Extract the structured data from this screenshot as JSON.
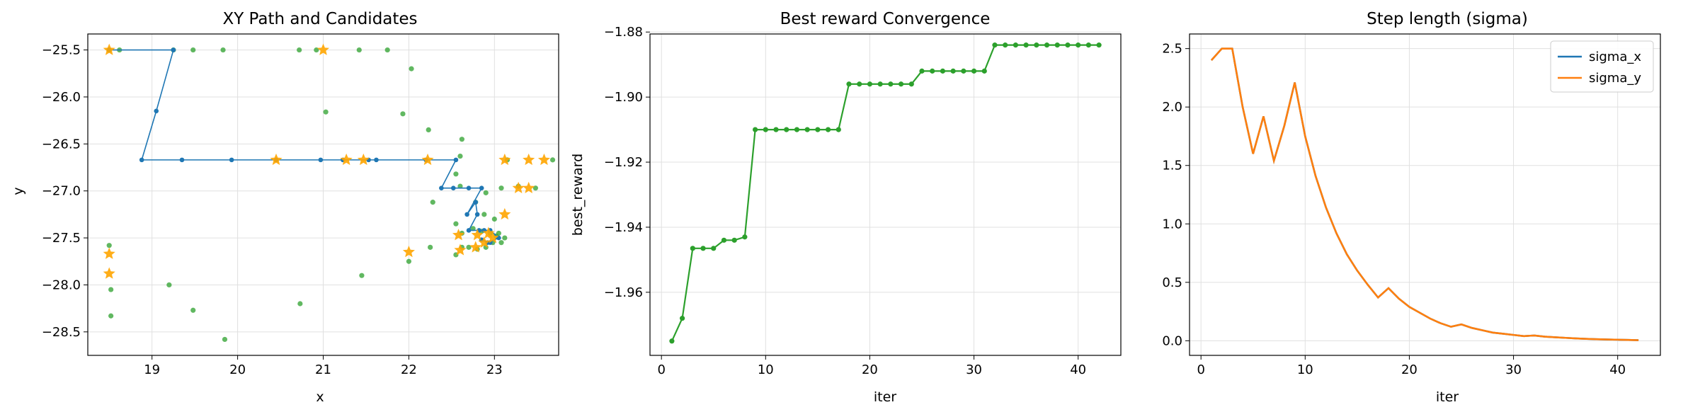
{
  "chart_data": [
    {
      "type": "scatter",
      "title": "XY Path and Candidates",
      "xlabel": "x",
      "ylabel": "y",
      "xlim": [
        18.25,
        23.75
      ],
      "ylim": [
        -28.75,
        -25.33
      ],
      "xticks": [
        19,
        20,
        21,
        22,
        23
      ],
      "yticks": [
        -25.5,
        -26.0,
        -26.5,
        -27.0,
        -27.5,
        -28.0,
        -28.5
      ],
      "grid": true,
      "colors": {
        "path": "#1f77b4",
        "candidates": "#2ca02c",
        "best": "#ffa500"
      },
      "series": [
        {
          "role": "path",
          "points": [
            [
              18.5,
              -25.5
            ],
            [
              19.25,
              -25.5
            ],
            [
              19.05,
              -26.15
            ],
            [
              18.88,
              -26.67
            ],
            [
              19.35,
              -26.67
            ],
            [
              19.93,
              -26.67
            ],
            [
              20.45,
              -26.67
            ],
            [
              20.97,
              -26.67
            ],
            [
              21.23,
              -26.67
            ],
            [
              21.53,
              -26.67
            ],
            [
              21.62,
              -26.67
            ],
            [
              22.2,
              -26.67
            ],
            [
              22.55,
              -26.67
            ],
            [
              22.38,
              -26.97
            ],
            [
              22.52,
              -26.97
            ],
            [
              22.7,
              -26.97
            ],
            [
              22.85,
              -26.97
            ],
            [
              22.68,
              -27.25
            ],
            [
              22.78,
              -27.12
            ],
            [
              22.8,
              -27.25
            ],
            [
              22.7,
              -27.42
            ],
            [
              22.82,
              -27.42
            ],
            [
              22.88,
              -27.42
            ],
            [
              22.95,
              -27.42
            ],
            [
              23.05,
              -27.5
            ],
            [
              22.92,
              -27.55
            ],
            [
              22.85,
              -27.52
            ],
            [
              22.95,
              -27.55
            ]
          ]
        },
        {
          "role": "candidates",
          "points": [
            [
              18.5,
              -25.5
            ],
            [
              18.62,
              -25.5
            ],
            [
              19.25,
              -25.5
            ],
            [
              19.48,
              -25.5
            ],
            [
              19.83,
              -25.5
            ],
            [
              20.72,
              -25.5
            ],
            [
              20.92,
              -25.5
            ],
            [
              21.42,
              -25.5
            ],
            [
              21.75,
              -25.5
            ],
            [
              22.03,
              -25.7
            ],
            [
              21.03,
              -26.16
            ],
            [
              21.93,
              -26.18
            ],
            [
              22.23,
              -26.35
            ],
            [
              22.62,
              -26.45
            ],
            [
              22.6,
              -26.63
            ],
            [
              23.15,
              -26.67
            ],
            [
              23.68,
              -26.67
            ],
            [
              22.55,
              -26.82
            ],
            [
              22.6,
              -26.95
            ],
            [
              22.9,
              -27.02
            ],
            [
              23.08,
              -26.97
            ],
            [
              23.28,
              -26.95
            ],
            [
              23.48,
              -26.97
            ],
            [
              22.28,
              -27.12
            ],
            [
              22.78,
              -27.12
            ],
            [
              22.88,
              -27.25
            ],
            [
              23.0,
              -27.3
            ],
            [
              22.55,
              -27.35
            ],
            [
              22.75,
              -27.4
            ],
            [
              22.85,
              -27.43
            ],
            [
              22.95,
              -27.45
            ],
            [
              23.05,
              -27.45
            ],
            [
              23.12,
              -27.5
            ],
            [
              23.08,
              -27.55
            ],
            [
              22.98,
              -27.55
            ],
            [
              22.9,
              -27.6
            ],
            [
              22.8,
              -27.62
            ],
            [
              22.7,
              -27.6
            ],
            [
              22.62,
              -27.6
            ],
            [
              22.55,
              -27.68
            ],
            [
              22.62,
              -27.45
            ],
            [
              23.02,
              -27.48
            ],
            [
              22.25,
              -27.6
            ],
            [
              22.0,
              -27.75
            ],
            [
              21.45,
              -27.9
            ],
            [
              20.73,
              -28.2
            ],
            [
              19.2,
              -28.0
            ],
            [
              19.48,
              -28.27
            ],
            [
              19.85,
              -28.58
            ],
            [
              18.5,
              -27.58
            ],
            [
              18.52,
              -28.05
            ],
            [
              18.52,
              -28.33
            ]
          ]
        },
        {
          "role": "best",
          "points": [
            [
              18.5,
              -25.5
            ],
            [
              21.0,
              -25.5
            ],
            [
              20.45,
              -26.67
            ],
            [
              21.27,
              -26.67
            ],
            [
              21.47,
              -26.67
            ],
            [
              22.22,
              -26.67
            ],
            [
              23.12,
              -26.67
            ],
            [
              23.4,
              -26.67
            ],
            [
              23.58,
              -26.67
            ],
            [
              23.28,
              -26.97
            ],
            [
              23.4,
              -26.97
            ],
            [
              23.12,
              -27.25
            ],
            [
              22.58,
              -27.47
            ],
            [
              22.8,
              -27.47
            ],
            [
              22.93,
              -27.45
            ],
            [
              22.98,
              -27.5
            ],
            [
              22.88,
              -27.55
            ],
            [
              22.78,
              -27.6
            ],
            [
              22.6,
              -27.63
            ],
            [
              22.0,
              -27.65
            ],
            [
              18.5,
              -27.67
            ],
            [
              18.5,
              -27.88
            ]
          ]
        }
      ]
    },
    {
      "type": "line",
      "title": "Best reward Convergence",
      "xlabel": "iter",
      "ylabel": "best_reward",
      "xlim": [
        -1.1,
        44.1
      ],
      "ylim": [
        -1.9794,
        -1.8806
      ],
      "xticks": [
        0,
        10,
        20,
        30,
        40
      ],
      "yticks": [
        -1.88,
        -1.9,
        -1.92,
        -1.94,
        -1.96
      ],
      "grid": true,
      "colors": {
        "line": "#2ca02c"
      },
      "x": [
        1,
        2,
        3,
        4,
        5,
        6,
        7,
        8,
        9,
        10,
        11,
        12,
        13,
        14,
        15,
        16,
        17,
        18,
        19,
        20,
        21,
        22,
        23,
        24,
        25,
        26,
        27,
        28,
        29,
        30,
        31,
        32,
        33,
        34,
        35,
        36,
        37,
        38,
        39,
        40,
        41,
        42
      ],
      "values": [
        -1.975,
        -1.968,
        -1.9465,
        -1.9465,
        -1.9465,
        -1.944,
        -1.944,
        -1.943,
        -1.91,
        -1.91,
        -1.91,
        -1.91,
        -1.91,
        -1.91,
        -1.91,
        -1.91,
        -1.91,
        -1.896,
        -1.896,
        -1.896,
        -1.896,
        -1.896,
        -1.896,
        -1.896,
        -1.892,
        -1.892,
        -1.892,
        -1.892,
        -1.892,
        -1.892,
        -1.892,
        -1.884,
        -1.884,
        -1.884,
        -1.884,
        -1.884,
        -1.884,
        -1.884,
        -1.884,
        -1.884,
        -1.884,
        -1.884
      ]
    },
    {
      "type": "line",
      "title": "Step length (sigma)",
      "xlabel": "iter",
      "ylabel": "",
      "xlim": [
        -1.1,
        44.1
      ],
      "ylim": [
        -0.125,
        2.625
      ],
      "xticks": [
        0,
        10,
        20,
        30,
        40
      ],
      "yticks": [
        0.0,
        0.5,
        1.0,
        1.5,
        2.0,
        2.5
      ],
      "grid": true,
      "legend": "top-right",
      "x": [
        1,
        2,
        3,
        4,
        5,
        6,
        7,
        8,
        9,
        10,
        11,
        12,
        13,
        14,
        15,
        16,
        17,
        18,
        19,
        20,
        21,
        22,
        23,
        24,
        25,
        26,
        27,
        28,
        29,
        30,
        31,
        32,
        33,
        34,
        35,
        36,
        37,
        38,
        39,
        40,
        41,
        42
      ],
      "series": [
        {
          "name": "sigma_x",
          "color": "#1f77b4",
          "values": [
            2.4,
            2.5,
            2.5,
            2.0,
            1.6,
            1.92,
            1.54,
            1.84,
            2.21,
            1.75,
            1.41,
            1.14,
            0.92,
            0.74,
            0.6,
            0.48,
            0.37,
            0.45,
            0.36,
            0.29,
            0.24,
            0.19,
            0.15,
            0.12,
            0.14,
            0.11,
            0.09,
            0.07,
            0.06,
            0.05,
            0.04,
            0.045,
            0.035,
            0.03,
            0.025,
            0.02,
            0.016,
            0.013,
            0.011,
            0.009,
            0.007,
            0.005
          ]
        },
        {
          "name": "sigma_y",
          "color": "#ff7f0e",
          "values": [
            2.4,
            2.5,
            2.5,
            2.0,
            1.6,
            1.92,
            1.54,
            1.84,
            2.21,
            1.75,
            1.41,
            1.14,
            0.92,
            0.74,
            0.6,
            0.48,
            0.37,
            0.45,
            0.36,
            0.29,
            0.24,
            0.19,
            0.15,
            0.12,
            0.14,
            0.11,
            0.09,
            0.07,
            0.06,
            0.05,
            0.04,
            0.045,
            0.035,
            0.03,
            0.025,
            0.02,
            0.016,
            0.013,
            0.011,
            0.009,
            0.007,
            0.005
          ]
        }
      ]
    }
  ]
}
